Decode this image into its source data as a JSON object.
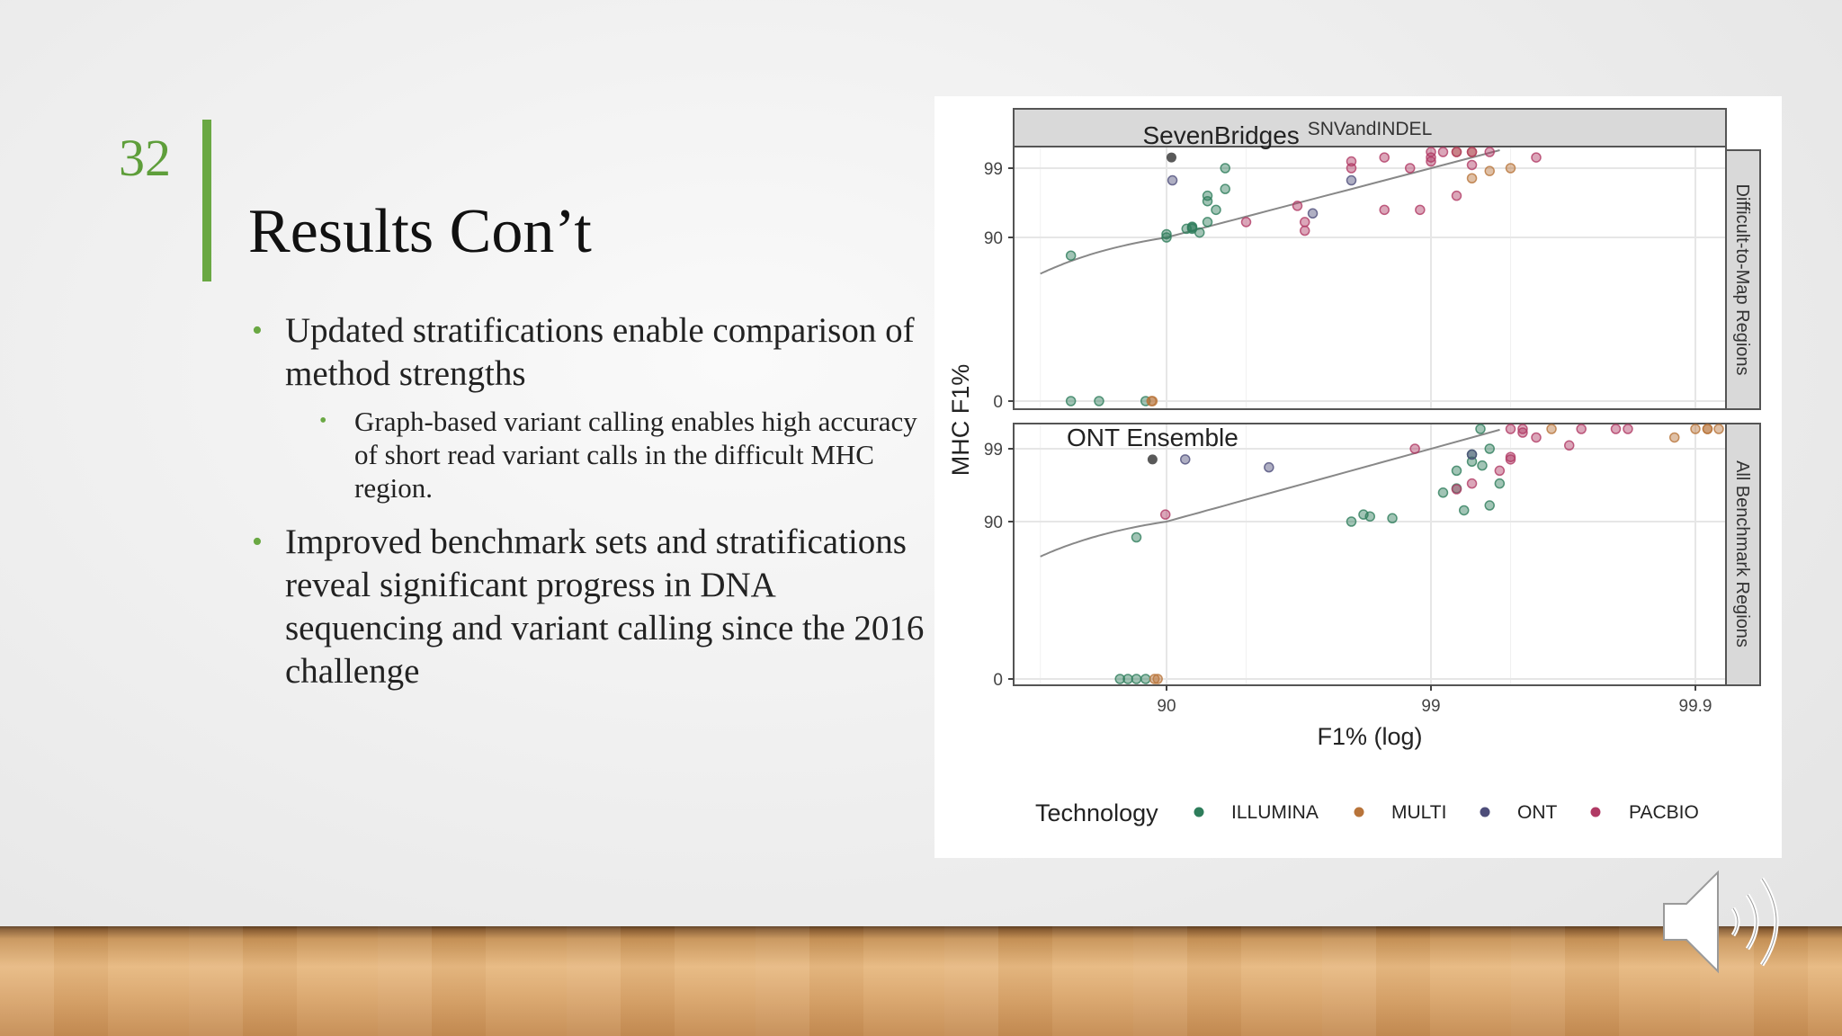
{
  "slide": {
    "number": "32",
    "title": "Results Con’t",
    "bullets": [
      {
        "text": "Updated stratifications enable comparison of method strengths",
        "sub": [
          "Graph-based variant calling enables high accuracy of short read variant calls in the difficult MHC region."
        ]
      },
      {
        "text": "Improved benchmark sets and stratifications reveal significant progress in DNA sequencing and variant calling since the 2016 challenge",
        "sub": []
      }
    ]
  },
  "chart_data": {
    "type": "scatter",
    "facet_top": "SNVandINDEL",
    "xlabel": "F1% (log)",
    "ylabel": "MHC F1%",
    "x_ticks": [
      "90",
      "99",
      "99.9"
    ],
    "y_ticks": [
      "0",
      "90",
      "99"
    ],
    "legend_title": "Technology",
    "legend_position": "bottom",
    "grid": true,
    "colors": {
      "ILLUMINA": "#2e7d5b",
      "MULTI": "#b8743a",
      "ONT": "#4e4e7a",
      "PACBIO": "#b03a64"
    },
    "panels": [
      {
        "name": "Difficult-to-Map Regions",
        "annotation": "SevenBridges",
        "annotation_x": 90.42,
        "annotation_y": 99.3,
        "diag_line": {
          "x0": 70,
          "y0": 70,
          "x1": 99.95,
          "y1": 99.95
        },
        "series": [
          {
            "name": "ILLUMINA",
            "points": [
              [
                77,
                0
              ],
              [
                77,
                80
              ],
              [
                82,
                0
              ],
              [
                88,
                0
              ],
              [
                90,
                90
              ],
              [
                90,
                91
              ],
              [
                92,
                92.5
              ],
              [
                92,
                93
              ],
              [
                92.5,
                91.5
              ],
              [
                93,
                94
              ],
              [
                93.5,
                96
              ],
              [
                93,
                97
              ],
              [
                93,
                97.5
              ],
              [
                94,
                98
              ],
              [
                94,
                99
              ],
              [
                92,
                92.8
              ],
              [
                91.6,
                92.5
              ]
            ]
          },
          {
            "name": "MULTI",
            "points": [
              [
                88.6,
                0
              ],
              [
                88.7,
                0
              ],
              [
                99.2,
                99.85
              ],
              [
                99.3,
                99.85
              ],
              [
                99.3,
                98.6
              ],
              [
                99.4,
                98.9
              ],
              [
                99.5,
                99
              ]
            ]
          },
          {
            "name": "ONT",
            "points": [
              [
                90.5,
                98.5
              ],
              [
                97.2,
                95.5
              ],
              [
                98,
                98.5
              ]
            ]
          },
          {
            "name": "PACBIO",
            "points": [
              [
                95,
                94
              ],
              [
                96.8,
                96.5
              ],
              [
                97,
                92
              ],
              [
                97,
                94
              ],
              [
                98,
                99
              ],
              [
                98,
                99.2
              ],
              [
                98.5,
                99.3
              ],
              [
                98.8,
                99
              ],
              [
                99,
                99.2
              ],
              [
                99,
                99.3
              ],
              [
                99,
                99.5
              ],
              [
                99.1,
                99.5
              ],
              [
                99.2,
                99.7
              ],
              [
                99.3,
                99.6
              ],
              [
                99.4,
                99.5
              ],
              [
                99.6,
                99.3
              ],
              [
                98.5,
                96
              ],
              [
                98.9,
                96
              ],
              [
                99.2,
                97.5
              ],
              [
                99.3,
                99.1
              ]
            ]
          }
        ]
      },
      {
        "name": "All Benchmark Regions",
        "annotation": "ONT Ensemble",
        "annotation_x": 88.7,
        "annotation_y": 98.6,
        "diag_line": {
          "x0": 70,
          "y0": 70,
          "x1": 99.95,
          "y1": 99.95
        },
        "series": [
          {
            "name": "ILLUMINA",
            "points": [
              [
                85,
                0
              ],
              [
                86,
                0
              ],
              [
                87,
                0
              ],
              [
                88,
                0
              ],
              [
                87,
                81
              ],
              [
                98,
                90
              ],
              [
                98.3,
                91.5
              ],
              [
                99.2,
                98
              ],
              [
                99.3,
                98.5
              ],
              [
                99.3,
                98.8
              ],
              [
                99.4,
                99
              ],
              [
                99.1,
                96
              ],
              [
                99.2,
                96.5
              ],
              [
                99.25,
                93
              ],
              [
                99.4,
                94
              ],
              [
                99.45,
                97
              ],
              [
                99.35,
                99.5
              ],
              [
                98.2,
                92
              ],
              [
                98.6,
                91
              ],
              [
                99.36,
                98.3
              ]
            ]
          },
          {
            "name": "MULTI",
            "points": [
              [
                88.9,
                0
              ],
              [
                89.2,
                0
              ],
              [
                99.65,
                99.5
              ],
              [
                99.88,
                99.3
              ],
              [
                99.9,
                99.7
              ],
              [
                99.91,
                99.85
              ],
              [
                99.91,
                99.5
              ],
              [
                99.93,
                99.9
              ]
            ]
          },
          {
            "name": "ONT",
            "points": [
              [
                91.5,
                98.6
              ],
              [
                95.9,
                98.2
              ],
              [
                99.3,
                98.8
              ]
            ]
          },
          {
            "name": "PACBIO",
            "points": [
              [
                89.9,
                92
              ],
              [
                98.85,
                99
              ],
              [
                99.2,
                96.4
              ],
              [
                99.3,
                97
              ],
              [
                99.45,
                98
              ],
              [
                99.5,
                99.6
              ],
              [
                99.55,
                99.4
              ],
              [
                99.55,
                99.7
              ],
              [
                99.6,
                99.3
              ],
              [
                99.7,
                99.1
              ],
              [
                99.73,
                99.6
              ],
              [
                99.8,
                99.5
              ],
              [
                99.82,
                99.6
              ],
              [
                99.5,
                98.6
              ],
              [
                99.5,
                98.7
              ]
            ]
          }
        ]
      }
    ]
  }
}
